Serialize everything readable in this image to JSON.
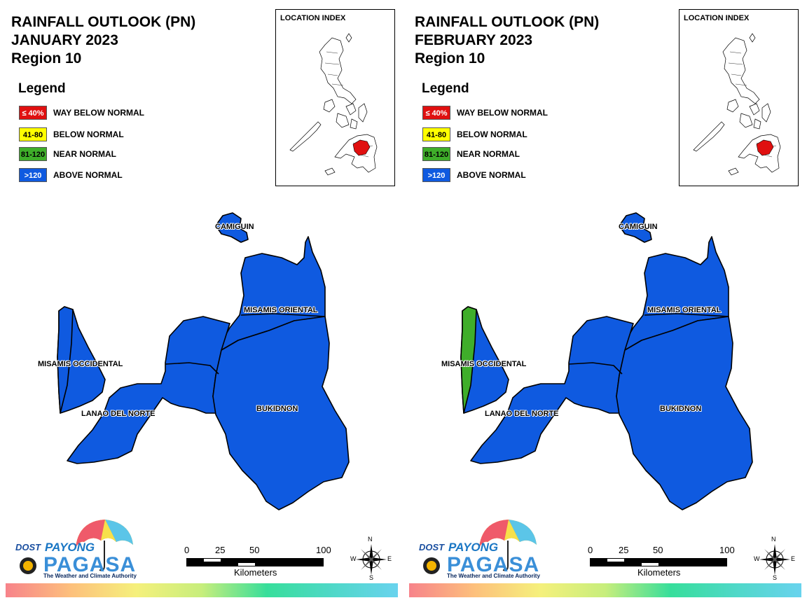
{
  "panels": [
    {
      "title_line1": "RAINFALL OUTLOOK (PN)",
      "title_line2": "JANUARY 2023",
      "title_line3": "Region 10",
      "province_colors": {
        "camiguin": "#0f5ae0",
        "misamis_oriental": "#0f5ae0",
        "misamis_occidental": "#0f5ae0",
        "misamis_occidental_west_strip": "#0f5ae0",
        "lanao_del_norte": "#0f5ae0",
        "bukidnon": "#0f5ae0"
      }
    },
    {
      "title_line1": "RAINFALL OUTLOOK (PN)",
      "title_line2": "FEBRUARY 2023",
      "title_line3": "Region 10",
      "province_colors": {
        "camiguin": "#0f5ae0",
        "misamis_oriental": "#0f5ae0",
        "misamis_occidental": "#0f5ae0",
        "misamis_occidental_west_strip": "#3fae2a",
        "lanao_del_norte": "#0f5ae0",
        "bukidnon": "#0f5ae0"
      }
    }
  ],
  "legend": {
    "title": "Legend",
    "items": [
      {
        "range": "≤ 40%",
        "label": "WAY BELOW NORMAL",
        "color": "#e01010",
        "text_color": "#ffffff"
      },
      {
        "range": "41-80",
        "label": "BELOW NORMAL",
        "color": "#ffff00",
        "text_color": "#000000"
      },
      {
        "range": "81-120",
        "label": "NEAR NORMAL",
        "color": "#3fae2a",
        "text_color": "#000000"
      },
      {
        "range": ">120",
        "label": "ABOVE NORMAL",
        "color": "#0f5ae0",
        "text_color": "#ffffff"
      }
    ]
  },
  "inset": {
    "title": "LOCATION INDEX",
    "highlight_color": "#e01010"
  },
  "provinces": {
    "camiguin": "CAMIGUIN",
    "misamis_oriental": "MISAMIS ORIENTAL",
    "misamis_occidental": "MISAMIS OCCIDENTAL",
    "lanao_del_norte": "LANAO DEL NORTE",
    "bukidnon": "BUKIDNON"
  },
  "scale": {
    "ticks": [
      "0",
      "25",
      "50",
      "100"
    ],
    "units": "Kilometers"
  },
  "compass": {
    "n": "N",
    "s": "S",
    "e": "E",
    "w": "W"
  },
  "logo": {
    "dost": "DOST",
    "payong": "PAYONG",
    "pagasa": "PAGASA",
    "tagline": "The Weather and Climate Authority"
  }
}
